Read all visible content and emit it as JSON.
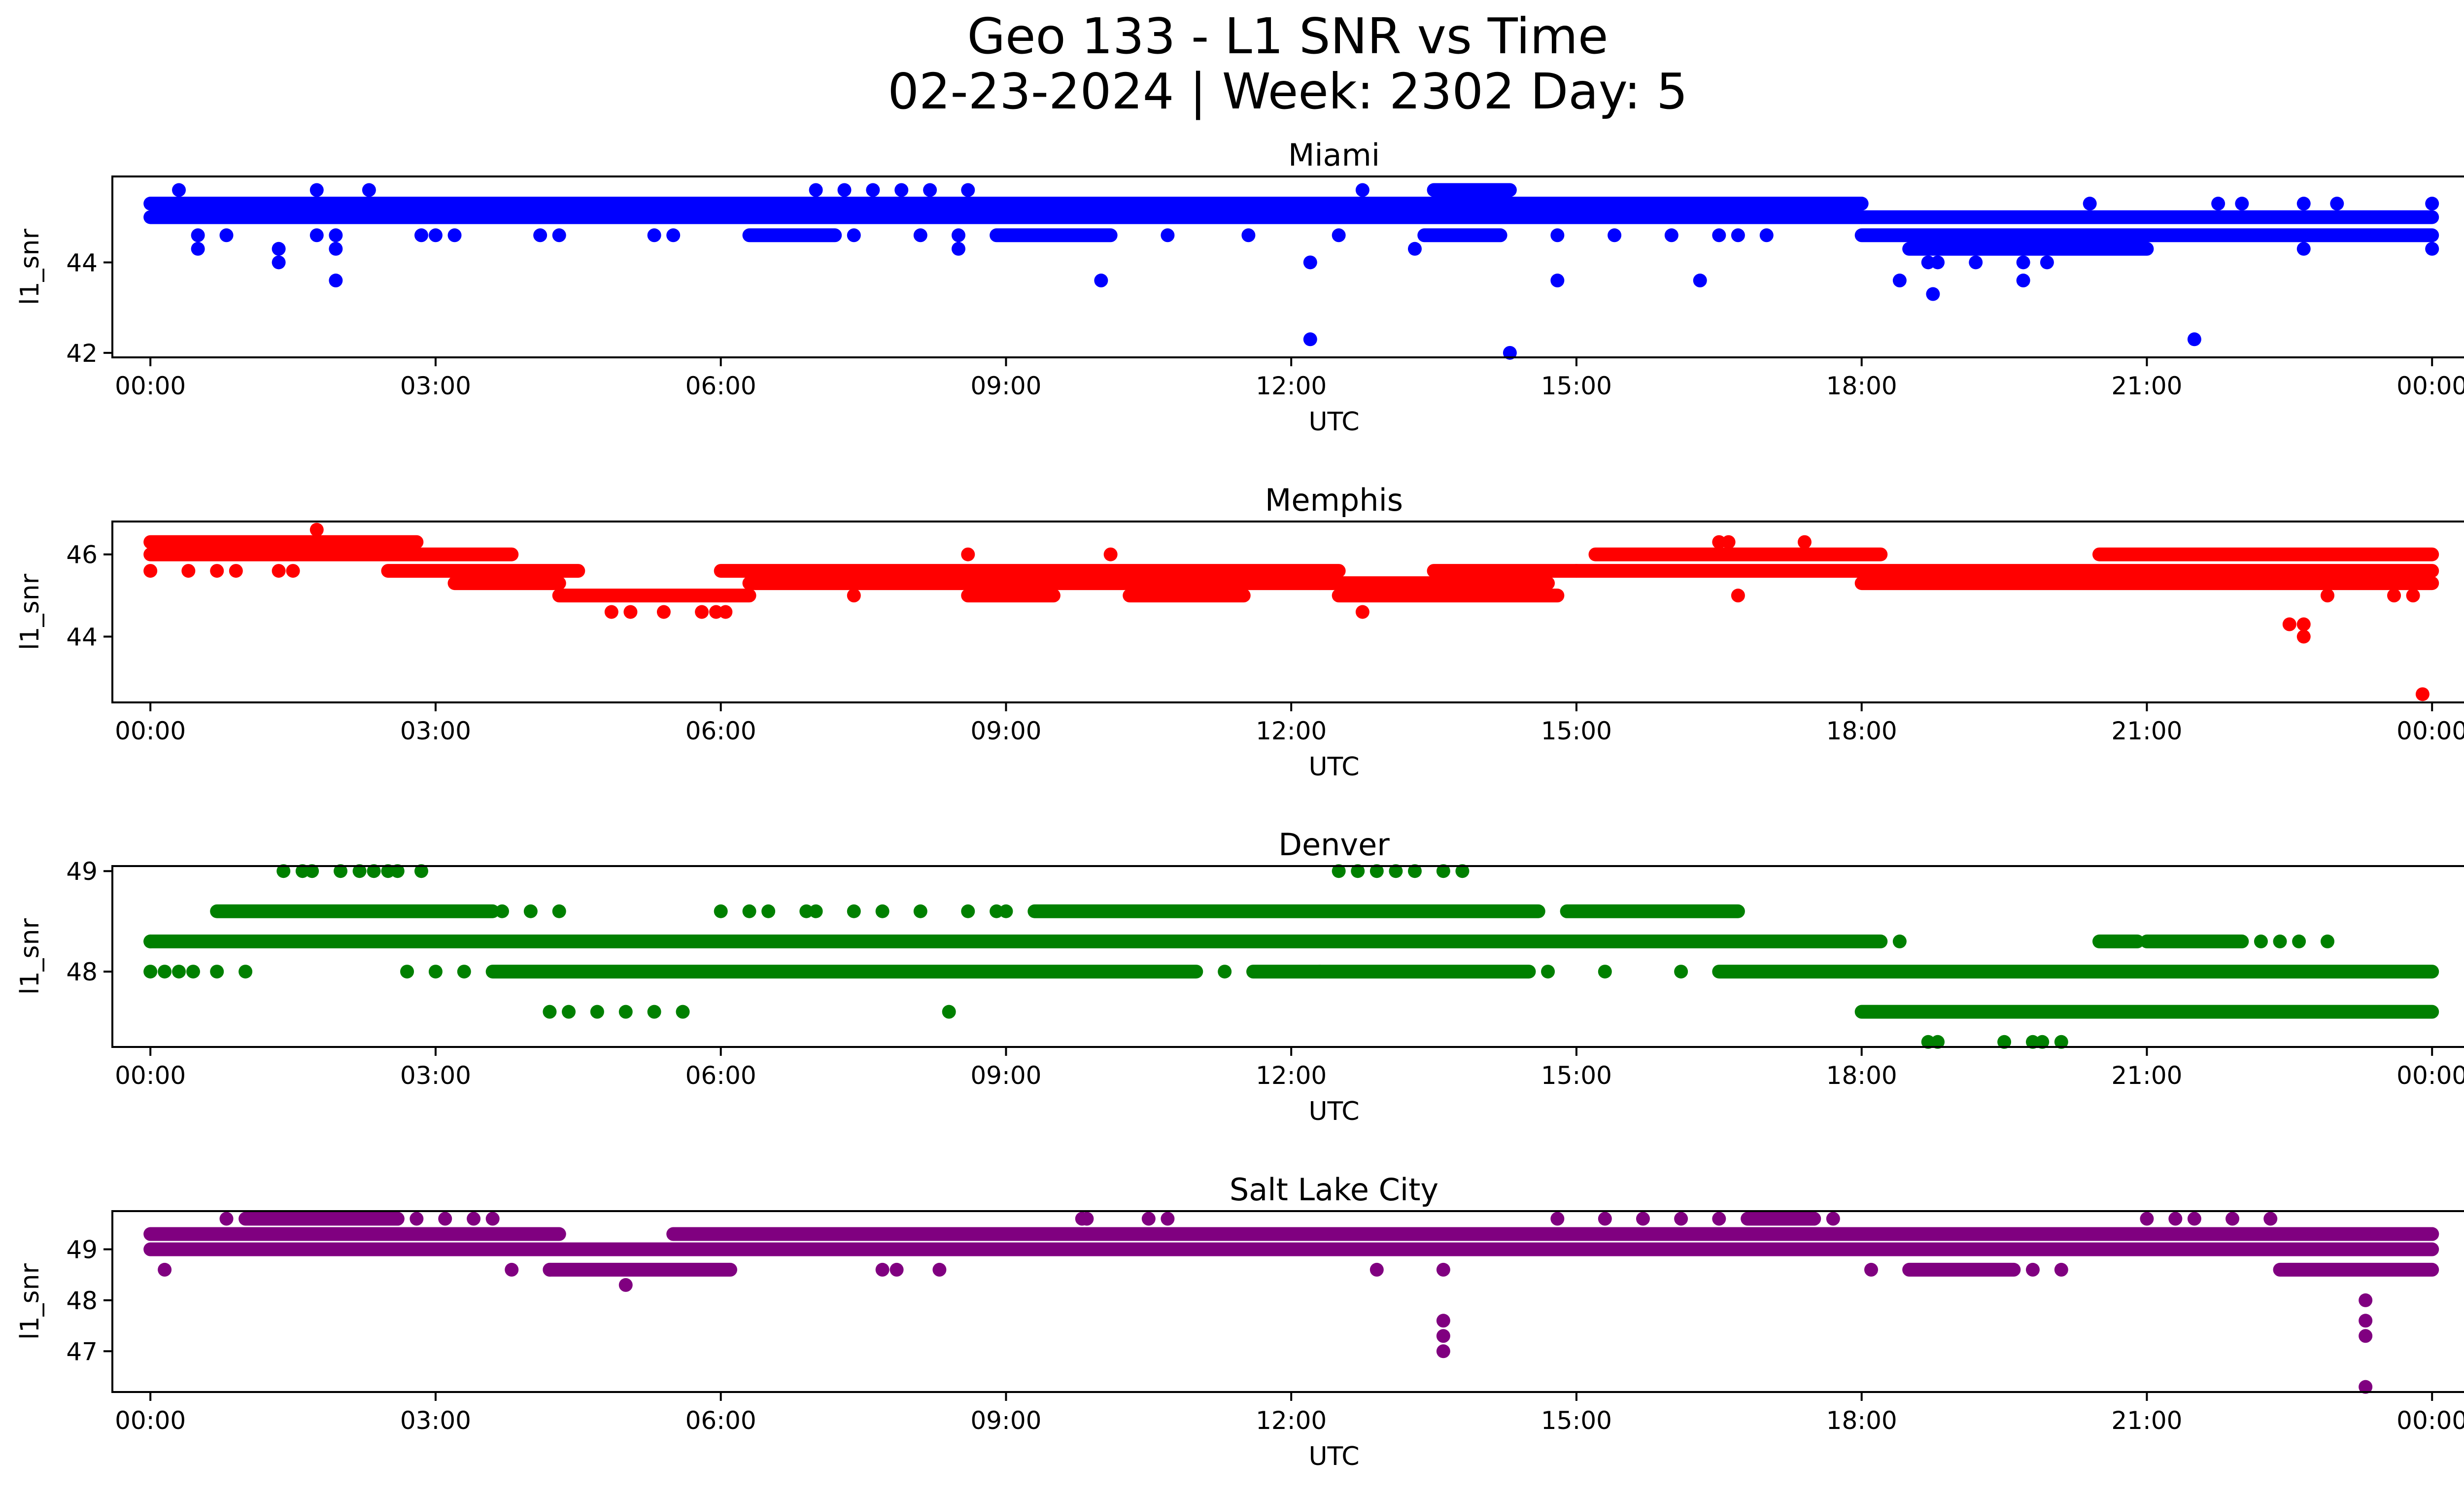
{
  "figure": {
    "title_line1": "Geo 133 - L1 SNR vs Time",
    "title_line2": "02-23-2024 | Week: 2302 Day: 5"
  },
  "chart_data": [
    {
      "type": "scatter",
      "title": "Miami",
      "xlabel": "UTC",
      "ylabel": "l1_snr",
      "color": "#0000ff",
      "x_range_hours": [
        -0.4,
        25.3
      ],
      "x_ticks": [
        "00:00",
        "03:00",
        "06:00",
        "09:00",
        "12:00",
        "15:00",
        "18:00",
        "21:00",
        "00:00"
      ],
      "ylim": [
        41.9,
        45.9
      ],
      "y_ticks": [
        42,
        44
      ],
      "bands": [
        {
          "y": 45.3,
          "segments": [
            [
              0,
              18.0
            ]
          ]
        },
        {
          "y": 45.0,
          "segments": [
            [
              0,
              18.0
            ],
            [
              18.0,
              24.0
            ]
          ]
        },
        {
          "y": 44.6,
          "segments": [
            [
              6.3,
              7.2
            ],
            [
              8.9,
              10.1
            ],
            [
              13.4,
              14.2
            ],
            [
              18.0,
              24.0
            ]
          ]
        },
        {
          "y": 44.3,
          "segments": [
            [
              18.5,
              21.0
            ]
          ]
        },
        {
          "y": 45.6,
          "segments": [
            [
              13.5,
              14.3
            ]
          ]
        }
      ],
      "points": [
        [
          0.3,
          45.6
        ],
        [
          0.5,
          44.6
        ],
        [
          0.5,
          44.3
        ],
        [
          0.8,
          44.6
        ],
        [
          1.35,
          44.3
        ],
        [
          1.35,
          44.0
        ],
        [
          1.75,
          45.6
        ],
        [
          1.75,
          44.6
        ],
        [
          1.95,
          44.6
        ],
        [
          1.95,
          44.3
        ],
        [
          1.95,
          43.6
        ],
        [
          2.3,
          45.6
        ],
        [
          2.85,
          44.6
        ],
        [
          3.0,
          44.6
        ],
        [
          3.2,
          44.6
        ],
        [
          4.1,
          44.6
        ],
        [
          4.3,
          44.6
        ],
        [
          5.3,
          44.6
        ],
        [
          5.5,
          44.6
        ],
        [
          7.0,
          45.6
        ],
        [
          7.3,
          45.6
        ],
        [
          7.4,
          44.6
        ],
        [
          7.6,
          45.6
        ],
        [
          7.9,
          45.6
        ],
        [
          8.1,
          44.6
        ],
        [
          8.2,
          45.6
        ],
        [
          8.5,
          44.6
        ],
        [
          8.5,
          44.3
        ],
        [
          8.6,
          45.6
        ],
        [
          9.35,
          45.3
        ],
        [
          10.0,
          43.6
        ],
        [
          10.7,
          44.6
        ],
        [
          11.55,
          44.6
        ],
        [
          12.2,
          44.0
        ],
        [
          12.2,
          42.3
        ],
        [
          12.5,
          44.6
        ],
        [
          12.75,
          45.6
        ],
        [
          13.3,
          44.3
        ],
        [
          14.3,
          42.0
        ],
        [
          14.8,
          44.6
        ],
        [
          14.8,
          43.6
        ],
        [
          15.4,
          44.6
        ],
        [
          16.0,
          44.6
        ],
        [
          16.3,
          43.6
        ],
        [
          16.5,
          44.6
        ],
        [
          16.7,
          44.6
        ],
        [
          17.0,
          44.6
        ],
        [
          18.4,
          43.6
        ],
        [
          18.7,
          44.0
        ],
        [
          18.75,
          43.3
        ],
        [
          18.8,
          44.0
        ],
        [
          19.2,
          44.0
        ],
        [
          19.7,
          44.0
        ],
        [
          19.7,
          43.6
        ],
        [
          19.95,
          44.0
        ],
        [
          20.4,
          45.3
        ],
        [
          21.5,
          42.3
        ],
        [
          21.75,
          45.3
        ],
        [
          22.0,
          45.3
        ],
        [
          22.65,
          45.3
        ],
        [
          22.65,
          44.3
        ],
        [
          23.0,
          45.3
        ],
        [
          24.0,
          45.3
        ],
        [
          24.0,
          44.3
        ]
      ]
    },
    {
      "type": "scatter",
      "title": "Memphis",
      "xlabel": "UTC",
      "ylabel": "l1_snr",
      "color": "#ff0000",
      "x_range_hours": [
        -0.4,
        25.3
      ],
      "x_ticks": [
        "00:00",
        "03:00",
        "06:00",
        "09:00",
        "12:00",
        "15:00",
        "18:00",
        "21:00",
        "00:00"
      ],
      "ylim": [
        42.4,
        46.8
      ],
      "y_ticks": [
        44,
        46
      ],
      "bands": [
        {
          "y": 46.3,
          "segments": [
            [
              0,
              2.8
            ]
          ]
        },
        {
          "y": 46.0,
          "segments": [
            [
              0,
              3.8
            ],
            [
              15.2,
              18.2
            ],
            [
              20.5,
              24.0
            ]
          ]
        },
        {
          "y": 45.6,
          "segments": [
            [
              2.5,
              4.5
            ],
            [
              6.0,
              12.5
            ],
            [
              13.5,
              15.0
            ],
            [
              15.0,
              24.0
            ]
          ]
        },
        {
          "y": 45.3,
          "segments": [
            [
              3.2,
              4.3
            ],
            [
              6.3,
              12.3
            ],
            [
              12.3,
              14.7
            ],
            [
              18.0,
              24.0
            ]
          ]
        },
        {
          "y": 45.0,
          "segments": [
            [
              4.3,
              6.3
            ],
            [
              8.6,
              9.5
            ],
            [
              10.3,
              11.5
            ],
            [
              12.5,
              14.8
            ]
          ]
        }
      ],
      "points": [
        [
          0.0,
          45.6
        ],
        [
          0.4,
          45.6
        ],
        [
          0.7,
          45.6
        ],
        [
          0.9,
          45.6
        ],
        [
          1.35,
          45.6
        ],
        [
          1.5,
          45.6
        ],
        [
          1.75,
          46.6
        ],
        [
          4.85,
          44.6
        ],
        [
          5.05,
          44.6
        ],
        [
          5.4,
          44.6
        ],
        [
          5.8,
          44.6
        ],
        [
          5.95,
          44.6
        ],
        [
          6.05,
          44.6
        ],
        [
          7.4,
          45.0
        ],
        [
          8.6,
          46.0
        ],
        [
          10.1,
          46.0
        ],
        [
          12.75,
          44.6
        ],
        [
          16.7,
          45.0
        ],
        [
          17.4,
          46.3
        ],
        [
          16.5,
          46.3
        ],
        [
          16.6,
          46.3
        ],
        [
          22.5,
          44.3
        ],
        [
          22.65,
          44.3
        ],
        [
          22.65,
          44.0
        ],
        [
          22.9,
          45.0
        ],
        [
          23.6,
          45.0
        ],
        [
          23.8,
          45.0
        ],
        [
          23.9,
          42.6
        ]
      ]
    },
    {
      "type": "scatter",
      "title": "Denver",
      "xlabel": "UTC",
      "ylabel": "l1_snr",
      "color": "#008000",
      "x_range_hours": [
        -0.4,
        25.3
      ],
      "x_ticks": [
        "00:00",
        "03:00",
        "06:00",
        "09:00",
        "12:00",
        "15:00",
        "18:00",
        "21:00",
        "00:00"
      ],
      "ylim": [
        47.25,
        49.05
      ],
      "y_ticks": [
        48,
        49
      ],
      "bands": [
        {
          "y": 48.3,
          "segments": [
            [
              0,
              18.2
            ]
          ]
        },
        {
          "y": 48.0,
          "segments": [
            [
              3.6,
              11.0
            ],
            [
              11.6,
              14.5
            ],
            [
              16.5,
              24.0
            ]
          ]
        },
        {
          "y": 48.6,
          "segments": [
            [
              0.7,
              3.6
            ],
            [
              9.3,
              14.6
            ],
            [
              14.9,
              16.7
            ]
          ]
        },
        {
          "y": 47.6,
          "segments": [
            [
              18.0,
              24.0
            ]
          ]
        },
        {
          "y": 48.3,
          "segments": [
            [
              20.5,
              20.9
            ],
            [
              21.0,
              22.0
            ]
          ]
        }
      ],
      "points": [
        [
          0.0,
          48.0
        ],
        [
          0.15,
          48.0
        ],
        [
          0.3,
          48.0
        ],
        [
          0.45,
          48.0
        ],
        [
          0.7,
          48.0
        ],
        [
          1.0,
          48.0
        ],
        [
          2.7,
          48.0
        ],
        [
          3.0,
          48.0
        ],
        [
          3.3,
          48.0
        ],
        [
          1.4,
          49.0
        ],
        [
          1.6,
          49.0
        ],
        [
          1.7,
          49.0
        ],
        [
          2.0,
          49.0
        ],
        [
          2.2,
          49.0
        ],
        [
          2.35,
          49.0
        ],
        [
          2.5,
          49.0
        ],
        [
          2.6,
          49.0
        ],
        [
          2.85,
          49.0
        ],
        [
          0.0,
          48.3
        ],
        [
          3.7,
          48.6
        ],
        [
          4.0,
          48.6
        ],
        [
          4.3,
          48.6
        ],
        [
          6.0,
          48.6
        ],
        [
          6.3,
          48.6
        ],
        [
          6.5,
          48.6
        ],
        [
          6.9,
          48.6
        ],
        [
          7.0,
          48.6
        ],
        [
          7.4,
          48.6
        ],
        [
          7.7,
          48.6
        ],
        [
          8.1,
          48.6
        ],
        [
          8.6,
          48.6
        ],
        [
          8.9,
          48.6
        ],
        [
          9.0,
          48.6
        ],
        [
          4.2,
          47.6
        ],
        [
          4.4,
          47.6
        ],
        [
          4.7,
          47.6
        ],
        [
          5.0,
          47.6
        ],
        [
          5.3,
          47.6
        ],
        [
          5.6,
          47.6
        ],
        [
          8.4,
          47.6
        ],
        [
          11.3,
          48.0
        ],
        [
          12.3,
          48.0
        ],
        [
          14.7,
          48.0
        ],
        [
          15.3,
          48.0
        ],
        [
          16.1,
          48.0
        ],
        [
          12.5,
          49.0
        ],
        [
          12.7,
          49.0
        ],
        [
          12.9,
          49.0
        ],
        [
          13.1,
          49.0
        ],
        [
          13.3,
          49.0
        ],
        [
          13.6,
          49.0
        ],
        [
          13.8,
          49.0
        ],
        [
          18.4,
          48.3
        ],
        [
          18.7,
          47.3
        ],
        [
          18.8,
          47.3
        ],
        [
          19.5,
          47.3
        ],
        [
          19.8,
          47.3
        ],
        [
          19.9,
          47.3
        ],
        [
          20.1,
          47.3
        ],
        [
          22.2,
          48.3
        ],
        [
          22.4,
          48.3
        ],
        [
          22.6,
          48.3
        ],
        [
          22.9,
          48.3
        ]
      ]
    },
    {
      "type": "scatter",
      "title": "Salt Lake City",
      "xlabel": "UTC",
      "ylabel": "l1_snr",
      "color": "#800080",
      "x_range_hours": [
        -0.4,
        25.3
      ],
      "x_ticks": [
        "00:00",
        "03:00",
        "06:00",
        "09:00",
        "12:00",
        "15:00",
        "18:00",
        "21:00",
        "00:00"
      ],
      "ylim": [
        46.2,
        49.75
      ],
      "y_ticks": [
        47,
        48,
        49
      ],
      "bands": [
        {
          "y": 49.3,
          "segments": [
            [
              0,
              4.3
            ],
            [
              5.5,
              18.5
            ],
            [
              18.5,
              24.0
            ]
          ]
        },
        {
          "y": 49.0,
          "segments": [
            [
              0,
              24.0
            ]
          ]
        },
        {
          "y": 48.6,
          "segments": [
            [
              4.2,
              6.1
            ],
            [
              18.5,
              19.6
            ],
            [
              22.4,
              24.0
            ]
          ]
        },
        {
          "y": 49.6,
          "segments": [
            [
              1.0,
              2.6
            ],
            [
              16.8,
              17.5
            ]
          ]
        }
      ],
      "points": [
        [
          0.15,
          48.6
        ],
        [
          0.8,
          49.6
        ],
        [
          1.15,
          49.6
        ],
        [
          1.4,
          49.6
        ],
        [
          2.6,
          49.6
        ],
        [
          2.8,
          49.6
        ],
        [
          3.1,
          49.6
        ],
        [
          3.4,
          49.6
        ],
        [
          3.6,
          49.6
        ],
        [
          3.8,
          48.6
        ],
        [
          4.2,
          48.6
        ],
        [
          5.0,
          48.3
        ],
        [
          7.7,
          48.6
        ],
        [
          7.85,
          48.6
        ],
        [
          8.3,
          48.6
        ],
        [
          9.8,
          49.6
        ],
        [
          9.85,
          49.6
        ],
        [
          10.5,
          49.6
        ],
        [
          10.7,
          49.6
        ],
        [
          12.9,
          48.6
        ],
        [
          13.6,
          48.6
        ],
        [
          13.6,
          47.6
        ],
        [
          13.6,
          47.3
        ],
        [
          13.6,
          47.0
        ],
        [
          14.8,
          49.6
        ],
        [
          15.3,
          49.6
        ],
        [
          15.7,
          49.6
        ],
        [
          16.1,
          49.6
        ],
        [
          16.5,
          49.6
        ],
        [
          17.7,
          49.6
        ],
        [
          18.1,
          48.6
        ],
        [
          19.8,
          48.6
        ],
        [
          20.1,
          48.6
        ],
        [
          21.0,
          49.6
        ],
        [
          21.5,
          49.6
        ],
        [
          21.3,
          49.6
        ],
        [
          21.9,
          49.6
        ],
        [
          22.3,
          49.6
        ],
        [
          23.3,
          48.0
        ],
        [
          23.3,
          47.6
        ],
        [
          23.3,
          47.3
        ],
        [
          23.3,
          46.3
        ],
        [
          24.0,
          49.3
        ]
      ]
    }
  ]
}
